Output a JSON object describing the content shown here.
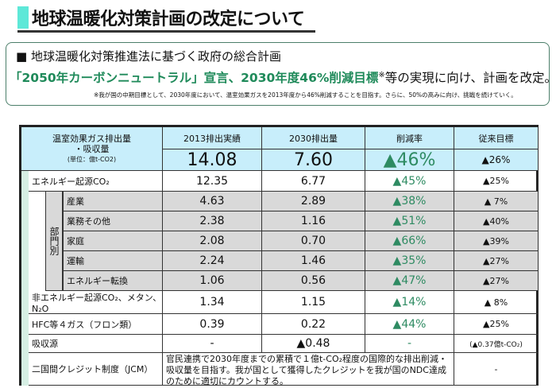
{
  "title": "地球温暖化対策計画の改定について",
  "summary": {
    "line1": "■ 地球温暖化対策推進法に基づく政府の総合計画",
    "line2_green": "「2050年カーボンニュートラル」宣言、2030年度46%削減目標",
    "line2_mark": "※",
    "line2_rest": "等の実現に向け、計画を改定。",
    "note": "※我が国の中期目標として、2030年度において、温室効果ガスを2013年度から46%削減することを目指す。さらに、50%の高みに向け、挑戦を続けていく。"
  },
  "table": {
    "corner": [
      "温室効果ガス排出量",
      "・吸収量",
      "(単位：億t-CO2)"
    ],
    "headers": [
      "2013排出実績",
      "2030排出量",
      "削減率",
      "従来目標"
    ],
    "total": [
      "14.08",
      "7.60",
      "▲46%",
      "▲26%"
    ],
    "energy": {
      "label": "エネルギー起源CO₂",
      "values": [
        "12.35",
        "6.77",
        "▲45%",
        "▲25%"
      ]
    },
    "sector_group": "部門別",
    "sectors": [
      {
        "label": "産業",
        "values": [
          "4.63",
          "2.89",
          "▲38%",
          "▲ 7%"
        ]
      },
      {
        "label": "業務その他",
        "values": [
          "2.38",
          "1.16",
          "▲51%",
          "▲40%"
        ]
      },
      {
        "label": "家庭",
        "values": [
          "2.08",
          "0.70",
          "▲66%",
          "▲39%"
        ]
      },
      {
        "label": "運輸",
        "values": [
          "2.24",
          "1.46",
          "▲35%",
          "▲27%"
        ]
      },
      {
        "label": "エネルギー転換",
        "values": [
          "1.06",
          "0.56",
          "▲47%",
          "▲27%"
        ]
      }
    ],
    "others": [
      {
        "label": "非エネルギー起源CO₂、メタン、N₂O",
        "values": [
          "1.34",
          "1.15",
          "▲14%",
          "▲ 8%"
        ]
      },
      {
        "label": "HFC等４ガス（フロン類）",
        "values": [
          "0.39",
          "0.22",
          "▲44%",
          "▲25%"
        ]
      },
      {
        "label": "吸収源",
        "values": [
          "-",
          "▲0.48",
          "-",
          "(▲0.37億t-CO₂)"
        ]
      }
    ],
    "jcm": {
      "label": "二国間クレジット制度（JCM）",
      "text": "官民連携で2030年度までの累積で１億t-CO₂程度の国際的な排出削減・吸収量を目指す。我が国として獲得したクレジットを我が国のNDC達成のために適切にカウントする。",
      "value": "-"
    }
  },
  "colors": {
    "accent_green": "#2e8b62",
    "header_blue": "#c8eefb",
    "sector_gray": "#d9d9d9"
  }
}
